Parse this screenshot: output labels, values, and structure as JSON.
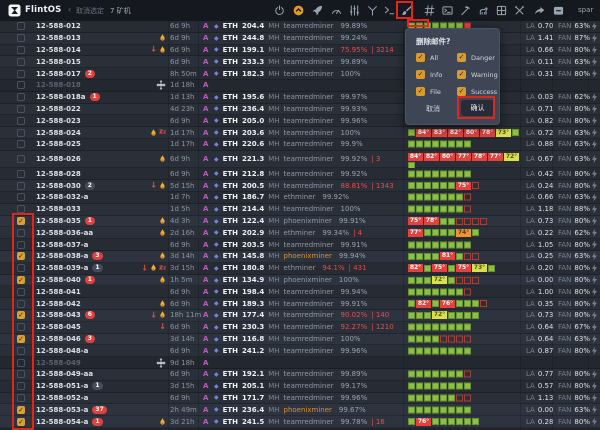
{
  "colors": {
    "accent_orange": "#e09b25",
    "danger_red": "#e5413c",
    "ok_green": "#8cc043",
    "warn_yellow": "#d9e04b",
    "annotation_red": "#e0261d",
    "eth_purple": "#7880d8",
    "watchdog_magenta": "#c558c0"
  },
  "topbar": {
    "logo_text": "FlintOS",
    "back_chevron": "‹",
    "deselect_label": "取消选定",
    "selection_count": "7 矿机",
    "right_label": "spar",
    "icons": [
      {
        "name": "power-icon"
      },
      {
        "name": "upgrade-icon"
      },
      {
        "name": "rocket-icon"
      },
      {
        "name": "gauge-icon"
      },
      {
        "name": "filters-icon"
      },
      {
        "name": "splitter-icon"
      },
      {
        "name": "terminal-icon"
      },
      {
        "name": "brush-icon",
        "marked": true
      },
      {
        "name": "hash-icon"
      },
      {
        "name": "console-icon"
      },
      {
        "name": "pickaxe-icon"
      },
      {
        "name": "dog-icon"
      },
      {
        "name": "grid-icon"
      },
      {
        "name": "tools-icon"
      },
      {
        "name": "share-icon"
      },
      {
        "name": "collapse-icon"
      }
    ]
  },
  "popup": {
    "title": "删除邮件?",
    "options": [
      {
        "label": "All",
        "checked": true
      },
      {
        "label": "Danger",
        "checked": true
      },
      {
        "label": "Info",
        "checked": true
      },
      {
        "label": "Warning",
        "checked": true
      },
      {
        "label": "File",
        "checked": true
      },
      {
        "label": "Success",
        "checked": true
      }
    ],
    "cancel_label": "取消",
    "confirm_label": "确认"
  },
  "table": {
    "coin_label": "ETH",
    "unit_label": "MH",
    "la_label": "LA",
    "fan_label": "FAN",
    "watch_label": "A",
    "rows": [
      {
        "name": "12-588-012",
        "uptime": "6d 9h",
        "hashrate": "204.4",
        "miner": "teamredminer",
        "pct": "99.89%",
        "la": "0.70",
        "fan": "63%",
        "cells": [
          "g",
          "g",
          "g",
          "g",
          "g",
          "g",
          "g",
          "r"
        ]
      },
      {
        "name": "12-588-013",
        "icons": [
          "flame"
        ],
        "uptime": "6d 9h",
        "hashrate": "244.8",
        "miner": "teamredminer",
        "pct": "99.24%",
        "la": "1.41",
        "fan": "87%",
        "cells": []
      },
      {
        "name": "12-588-014",
        "icons": [
          "down",
          "flame"
        ],
        "uptime": "6d 9h",
        "hashrate": "199.1",
        "miner": "teamredminer",
        "pct": "75.95%",
        "pct_red": true,
        "shares": "3214",
        "la": "0.66",
        "fan": "80%",
        "cells": []
      },
      {
        "name": "12-588-015",
        "uptime": "6d 9h",
        "hashrate": "233.3",
        "miner": "teamredminer",
        "pct": "99.89%",
        "la": "0.11",
        "fan": "63%",
        "cells": []
      },
      {
        "name": "12-588-017",
        "badge": {
          "text": "2",
          "type": "red"
        },
        "uptime": "8h 50m",
        "hashrate": "182.3",
        "miner": "teamredminer",
        "pct": "100%",
        "la": "0.31",
        "fan": "80%",
        "cells": []
      },
      {
        "name": "12-588-018",
        "dim": true,
        "icons": [
          "move"
        ],
        "uptime": "1d 18h"
      },
      {
        "name": "12-588-018a",
        "badge": {
          "text": "1",
          "type": "red"
        },
        "uptime": "1d 13h",
        "hashrate": "195.6",
        "miner": "teamredminer",
        "pct": "99.97%",
        "la": "0.03",
        "fan": "62%",
        "cells": []
      },
      {
        "name": "12-588-022",
        "uptime": "4d 23h",
        "hashrate": "236.4",
        "miner": "teamredminer",
        "pct": "99.93%",
        "la": "0.71",
        "fan": "80%",
        "cells": []
      },
      {
        "name": "12-588-023",
        "uptime": "6d 9h",
        "hashrate": "205.0",
        "miner": "teamredminer",
        "pct": "99.96%",
        "la": "0.82",
        "fan": "80%",
        "cells": []
      },
      {
        "name": "12-588-024",
        "icons": [
          "flame",
          "zz"
        ],
        "uptime": "1d 17h",
        "hashrate": "203.6",
        "miner": "teamredminer",
        "pct": "100%",
        "la": "0.72",
        "fan": "63%",
        "cells": [
          "g",
          "r84",
          "r83",
          "r82",
          "r80",
          "r78",
          "y73",
          "g"
        ]
      },
      {
        "name": "12-588-025",
        "uptime": "1d 17h",
        "hashrate": "220.6",
        "miner": "teamredminer",
        "pct": "99.9%",
        "la": "0.88",
        "fan": "63%",
        "cells": [
          "g",
          "g",
          "g",
          "g",
          "g",
          "g",
          "g",
          "g"
        ]
      },
      {
        "name": "12-588-026",
        "tall": true,
        "icons": [
          "flame"
        ],
        "uptime": "6d 9h",
        "hashrate": "221.3",
        "miner": "teamredminer",
        "pct": "99.92%",
        "shares": "3",
        "la": "0.67",
        "fan": "63%",
        "cells": [
          "r84",
          "r82",
          "r80",
          "r77",
          "r78",
          "r77",
          "y72"
        ],
        "cells2": [
          "g"
        ]
      },
      {
        "name": "12-588-028",
        "uptime": "6d 9h",
        "hashrate": "212.8",
        "miner": "teamredminer",
        "pct": "99.92%",
        "la": "0.42",
        "fan": "80%",
        "cells": [
          "g",
          "g",
          "g",
          "g",
          "g",
          "g",
          "g",
          "g"
        ]
      },
      {
        "name": "12-588-030",
        "badge": {
          "text": "2",
          "type": "dark"
        },
        "icons": [
          "down",
          "flame"
        ],
        "uptime": "5d 15h",
        "hashrate": "200.5",
        "miner": "teamredminer",
        "pct": "88.81%",
        "pct_red": true,
        "shares": "1343",
        "la": "0.24",
        "fan": "80%",
        "cells": [
          "g",
          "g",
          "g",
          "g",
          "g",
          "g",
          "r75",
          "e"
        ]
      },
      {
        "name": "12-588-032-a",
        "uptime": "1d 7h",
        "hashrate": "186.7",
        "miner": "ethminer",
        "pct": "99.92%",
        "la": "0.66",
        "fan": "63%",
        "cells": [
          "g",
          "g",
          "g",
          "g",
          "g",
          "g",
          "g",
          "e"
        ]
      },
      {
        "name": "12-588-033",
        "uptime": "1d 5h",
        "hashrate": "214.4",
        "miner": "teamredminer",
        "pct": "100%",
        "la": "1.18",
        "fan": "88%",
        "cells": [
          "g",
          "g",
          "g",
          "g",
          "g",
          "g",
          "g",
          "e"
        ]
      },
      {
        "name": "12-588-035",
        "checked": true,
        "badge": {
          "text": "1",
          "type": "red"
        },
        "icons": [
          "flame"
        ],
        "uptime": "4d 3h",
        "hashrate": "122.4",
        "miner": "phoenixminer",
        "pct": "99.91%",
        "la": "0.73",
        "fan": "80%",
        "cells": [
          "r75",
          "r78",
          "g",
          "g",
          "e",
          "e",
          "e",
          "e"
        ]
      },
      {
        "name": "12-588-036-aa",
        "icons": [
          "flame"
        ],
        "uptime": "2d 16h",
        "hashrate": "202.9",
        "miner": "ethminer",
        "pct": "99.34%",
        "shares": "4",
        "la": "0.22",
        "fan": "62%",
        "cells": [
          "r77",
          "g",
          "g",
          "g",
          "g",
          "o74",
          "g"
        ]
      },
      {
        "name": "12-588-037-a",
        "uptime": "6d 9h",
        "hashrate": "203.5",
        "miner": "teamredminer",
        "pct": "99.91%",
        "la": "1.05",
        "fan": "80%",
        "cells": [
          "g",
          "g",
          "g",
          "g",
          "g",
          "g",
          "g",
          "g"
        ]
      },
      {
        "name": "12-588-038-a",
        "checked": true,
        "badge": {
          "text": "3",
          "type": "red"
        },
        "icons": [
          "flame"
        ],
        "uptime": "3d 14h",
        "hashrate": "145.8",
        "miner": "phoenixminer",
        "miner_orange": true,
        "pct": "99.94%",
        "la": "0.25",
        "fan": "63%",
        "cells": [
          "g",
          "g",
          "g",
          "g",
          "r81",
          "g",
          "e",
          "e"
        ]
      },
      {
        "name": "12-588-039-a",
        "badge": {
          "text": "1",
          "type": "dark"
        },
        "icons": [
          "down",
          "flame",
          "zz"
        ],
        "uptime": "3d 15h",
        "hashrate": "180.8",
        "miner": "ethminer",
        "pct": "94.1%",
        "pct_red": true,
        "shares": "431",
        "la": "0.20",
        "fan": "80%",
        "cells": [
          "r82",
          "g",
          "r75",
          "g",
          "r75",
          "y73",
          "g"
        ]
      },
      {
        "name": "12-588-040",
        "checked": true,
        "badge": {
          "text": "1",
          "type": "red"
        },
        "icons": [
          "flame"
        ],
        "uptime": "1h 5m",
        "hashrate": "134.9",
        "miner": "phoenixminer",
        "pct": "100%",
        "la": "0.00",
        "fan": "80%",
        "cells": [
          "g",
          "g",
          "g",
          "y72",
          "g",
          "e",
          "e",
          "e"
        ]
      },
      {
        "name": "12-588-041",
        "uptime": "6d 9h",
        "hashrate": "198.4",
        "miner": "teamredminer",
        "pct": "99.94%",
        "la": "1.00",
        "fan": "80%",
        "cells": [
          "g",
          "g",
          "g",
          "g",
          "g",
          "g",
          "g",
          "e"
        ]
      },
      {
        "name": "12-588-042",
        "icons": [
          "flame"
        ],
        "uptime": "6d 9h",
        "hashrate": "189.3",
        "miner": "teamredminer",
        "pct": "99.91%",
        "la": "0.35",
        "fan": "80%",
        "cells": [
          "g",
          "r82",
          "g",
          "r76",
          "g",
          "g",
          "g",
          "e"
        ]
      },
      {
        "name": "12-588-043",
        "checked": true,
        "badge": {
          "text": "6",
          "type": "red"
        },
        "icons": [
          "down",
          "flame"
        ],
        "uptime": "18h 11m",
        "hashrate": "177.4",
        "miner": "teamredminer",
        "pct": "90.02%",
        "pct_red": true,
        "shares": "140",
        "la": "0.73",
        "fan": "80%",
        "cells": [
          "g",
          "g",
          "g",
          "y72",
          "g",
          "g",
          "g",
          "g"
        ]
      },
      {
        "name": "12-588-045",
        "icons": [
          "down"
        ],
        "uptime": "6d 9h",
        "hashrate": "230.3",
        "miner": "teamredminer",
        "pct": "92.27%",
        "pct_red": true,
        "shares": "1210",
        "la": "0.64",
        "fan": "67%",
        "cells": [
          "g",
          "g",
          "g",
          "g",
          "g",
          "g",
          "g",
          "g"
        ]
      },
      {
        "name": "12-588-046",
        "checked": true,
        "badge": {
          "text": "3",
          "type": "red"
        },
        "uptime": "3d 14h",
        "hashrate": "116.8",
        "miner": "teamredminer",
        "pct": "100%",
        "la": "0.64",
        "fan": "63%",
        "cells": [
          "g",
          "g",
          "g",
          "g",
          "e",
          "e",
          "e",
          "e"
        ]
      },
      {
        "name": "12-588-048-a",
        "uptime": "6d 9h",
        "hashrate": "241.2",
        "miner": "teamredminer",
        "pct": "99.96%",
        "la": "0.87",
        "fan": "80%",
        "cells": [
          "g",
          "g",
          "g",
          "g",
          "g",
          "g",
          "g",
          "g"
        ]
      },
      {
        "name": "12-588-049",
        "dim": true,
        "icons": [
          "move"
        ],
        "uptime": "9d 18h"
      },
      {
        "name": "12-588-049-aa",
        "uptime": "6d 9h",
        "hashrate": "192.1",
        "miner": "teamredminer",
        "pct": "99.89%",
        "la": "0.77",
        "fan": "80%",
        "cells": [
          "g",
          "g",
          "g",
          "g",
          "g",
          "g",
          "g",
          "e"
        ]
      },
      {
        "name": "12-588-051-a",
        "badge": {
          "text": "1",
          "type": "dark"
        },
        "uptime": "3d 15h",
        "hashrate": "205.1",
        "miner": "teamredminer",
        "pct": "99.17%",
        "la": "0.57",
        "fan": "80%",
        "cells": [
          "g",
          "g",
          "g",
          "g",
          "g",
          "g",
          "g",
          "g"
        ]
      },
      {
        "name": "12-588-052-a",
        "uptime": "6d 9h",
        "hashrate": "171.7",
        "miner": "teamredminer",
        "pct": "99.96%",
        "la": "1.13",
        "fan": "80%",
        "cells": [
          "g",
          "g",
          "g",
          "g",
          "g",
          "g",
          "e",
          "e"
        ]
      },
      {
        "name": "12-588-053-a",
        "checked": true,
        "badge": {
          "text": "37",
          "type": "red"
        },
        "uptime": "2h 49m",
        "hashrate": "236.4",
        "miner": "phoenixminer",
        "miner_orange": true,
        "pct": "99.67%",
        "la": "0.00",
        "fan": "63%",
        "cells": [
          "g",
          "g",
          "g",
          "g",
          "g",
          "g",
          "g",
          "g"
        ]
      },
      {
        "name": "12-588-054-a",
        "checked": true,
        "badge": {
          "text": "1",
          "type": "red"
        },
        "icons": [
          "flame"
        ],
        "uptime": "3d 21h",
        "hashrate": "241.5",
        "miner": "teamredminer",
        "pct": "99.78%",
        "shares": "16",
        "la": "0.28",
        "fan": "80%",
        "cells": [
          "g",
          "r76",
          "g",
          "g",
          "g",
          "g",
          "g",
          "g"
        ]
      }
    ]
  }
}
